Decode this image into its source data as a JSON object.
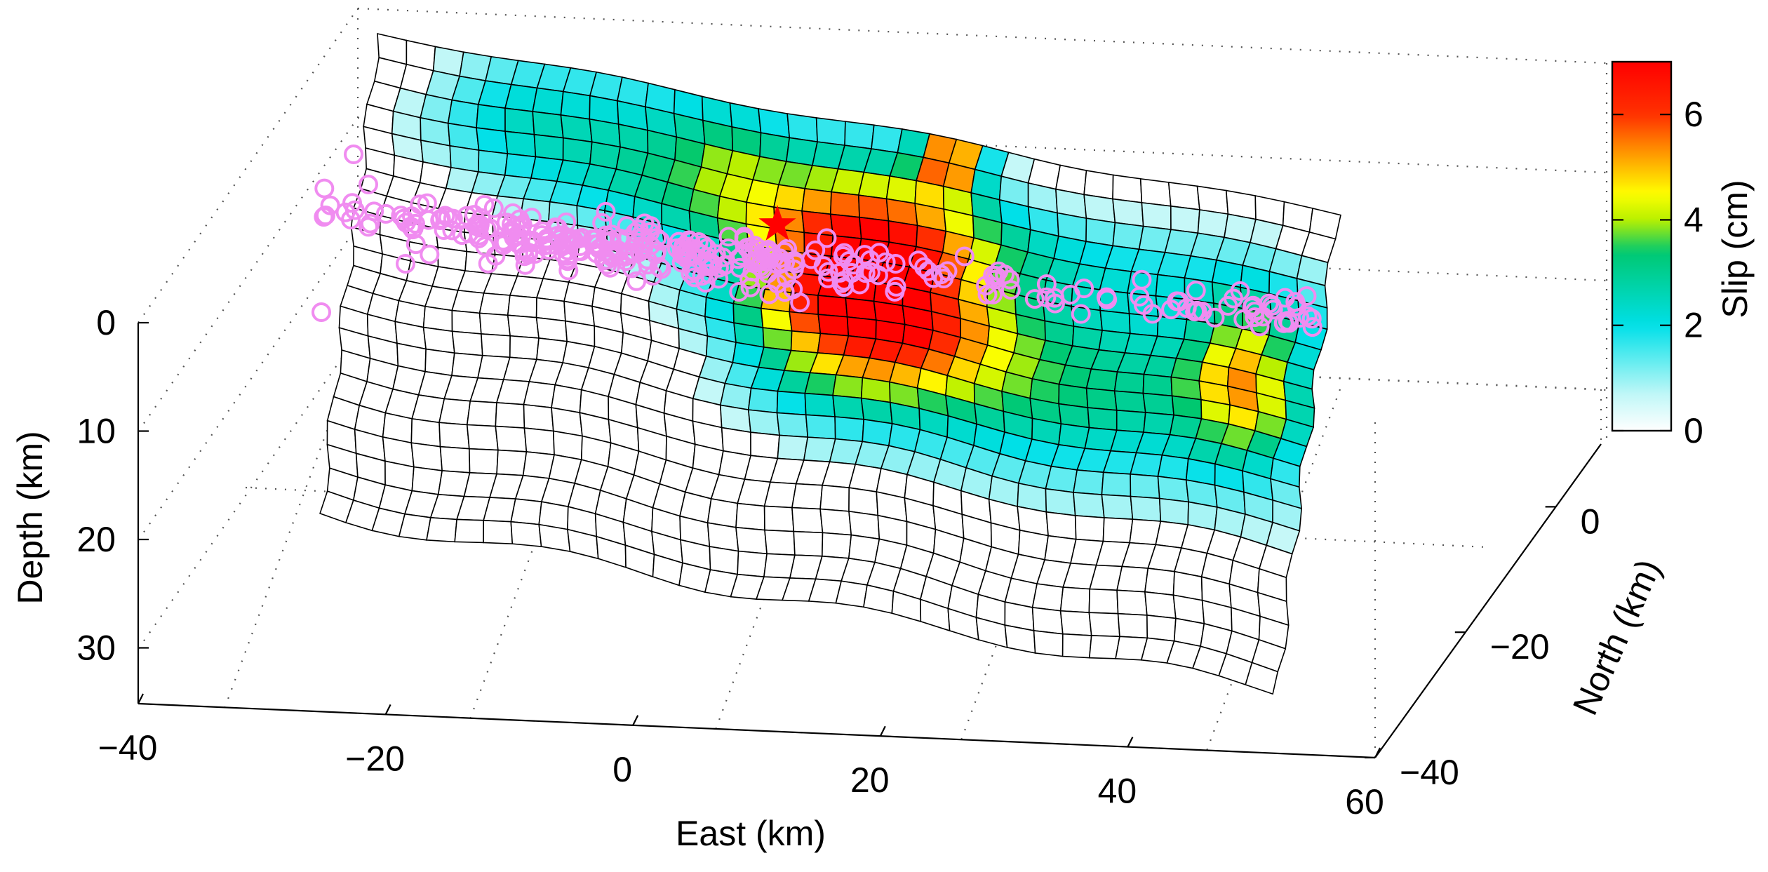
{
  "chart_data": {
    "type": "heatmap",
    "subtype": "3d-fault-slip-surface",
    "title": "",
    "xlabel": "East (km)",
    "ylabel": "North (km)",
    "zlabel": "Depth (km)",
    "colorbar_label": "Slip (cm)",
    "x_ticks": [
      "−40",
      "−20",
      "0",
      "20",
      "40",
      "60"
    ],
    "y_ticks": [
      "−40",
      "−20",
      "0"
    ],
    "z_ticks": [
      "0",
      "10",
      "20",
      "30"
    ],
    "colorbar_ticks": [
      "0",
      "2",
      "4",
      "6"
    ],
    "xlim": [
      -40,
      60
    ],
    "ylim": [
      -40,
      10
    ],
    "zlim": [
      0,
      35
    ],
    "clim": [
      0,
      7
    ],
    "grid": true,
    "colormap": [
      "#ffffff",
      "#bff7f7",
      "#00e0e8",
      "#00c870",
      "#b8f000",
      "#ffff00",
      "#ffa000",
      "#ff3000",
      "#ff0000"
    ],
    "slip_columns": 35,
    "slip_rows": 22,
    "slip_patches": [
      {
        "col": 18.5,
        "row": 7.5,
        "peak": 7.0,
        "rx": 4.5,
        "ry": 5.5
      },
      {
        "col": 10.5,
        "row": 3.0,
        "peak": 2.0,
        "rx": 6.0,
        "ry": 5.0
      },
      {
        "col": 24.0,
        "row": 10.0,
        "peak": 2.2,
        "rx": 7.5,
        "ry": 4.5
      },
      {
        "col": 21.0,
        "row": 0.8,
        "peak": 5.0,
        "rx": 1.3,
        "ry": 1.6
      },
      {
        "col": 32.5,
        "row": 8.5,
        "peak": 3.4,
        "rx": 2.0,
        "ry": 4.0
      },
      {
        "col": 31.0,
        "row": 10.0,
        "peak": 1.6,
        "rx": 9.0,
        "ry": 6.0
      },
      {
        "col": 22.0,
        "row": 4.0,
        "peak": 1.5,
        "rx": 18.0,
        "ry": 2.5
      }
    ],
    "hypocenter": {
      "marker": "star",
      "color": "#ff0000"
    },
    "aftershocks": {
      "marker": "circle",
      "color": "#f08cf0",
      "count": 330
    }
  }
}
